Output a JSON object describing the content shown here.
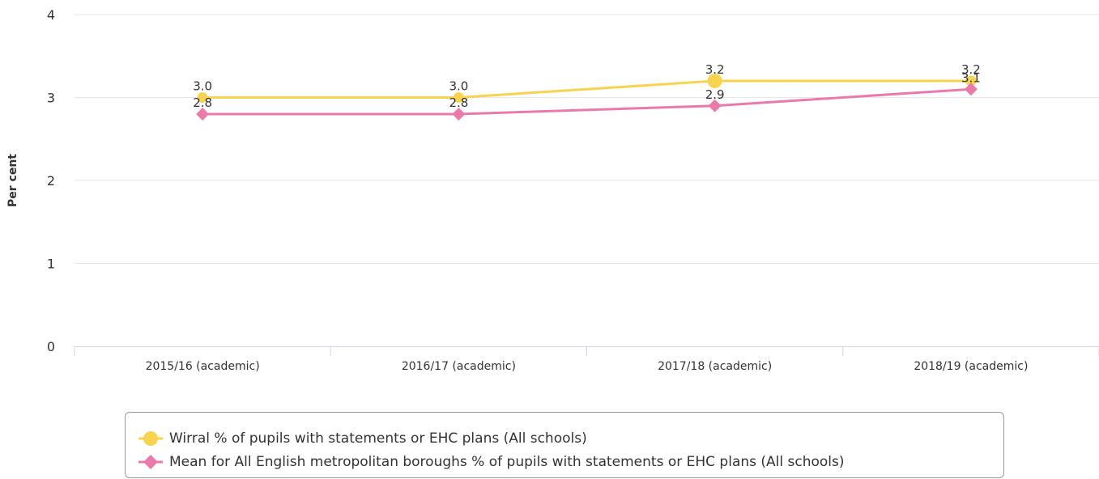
{
  "chart_data": {
    "type": "line",
    "title": "",
    "xlabel": "",
    "ylabel": "Per cent",
    "ylim": [
      0,
      4
    ],
    "yticks": [
      "0",
      "1",
      "2",
      "3",
      "4"
    ],
    "grid": true,
    "legend_position": "bottom",
    "categories": [
      "2015/16 (academic)",
      "2016/17 (academic)",
      "2017/18 (academic)",
      "2018/19 (academic)"
    ],
    "series": [
      {
        "name": "Wirral % of pupils with statements or EHC plans (All schools)",
        "values": [
          3.0,
          3.0,
          3.2,
          3.2
        ],
        "labels": [
          "3.0",
          "3.0",
          "3.2",
          "3.2"
        ],
        "color": "#f8d34f",
        "marker": "circle"
      },
      {
        "name": "Mean for All English metropolitan boroughs % of pupils with statements or EHC plans (All schools)",
        "values": [
          2.8,
          2.8,
          2.9,
          3.1
        ],
        "labels": [
          "2.8",
          "2.8",
          "2.9",
          "3.1"
        ],
        "color": "#e97aab",
        "marker": "diamond"
      }
    ]
  }
}
